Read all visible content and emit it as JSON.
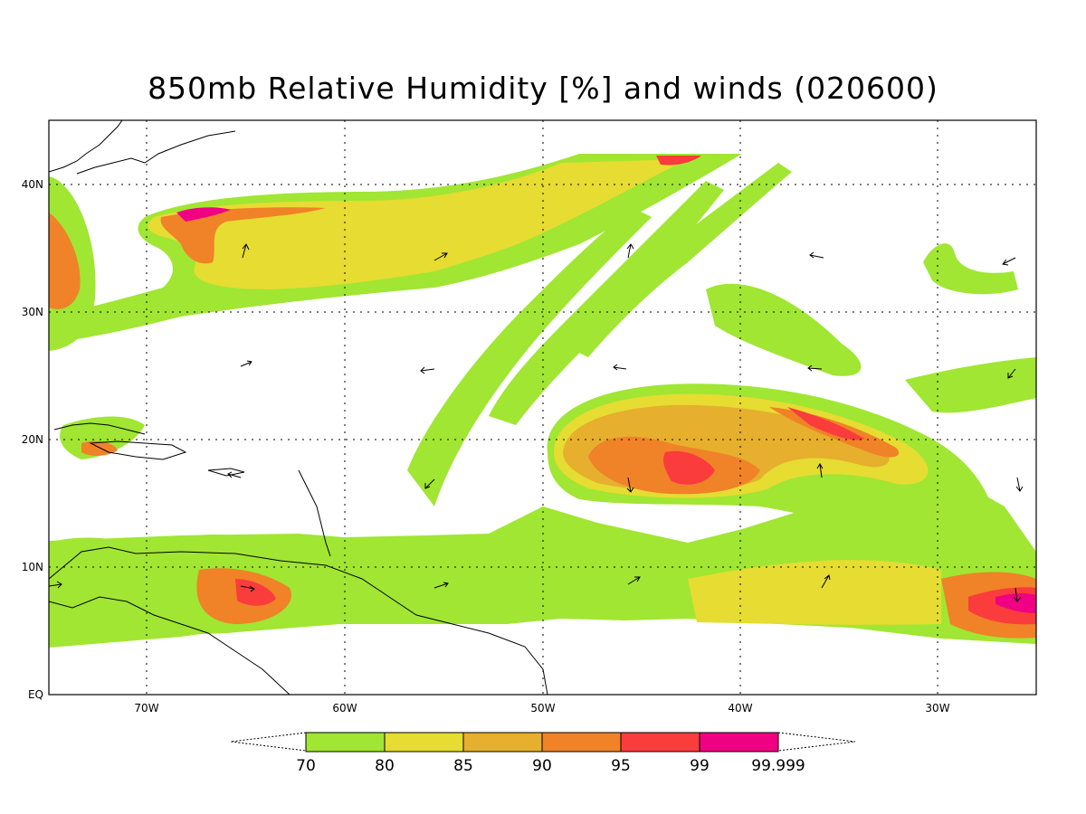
{
  "title": "850mb Relative Humidity [%] and winds (020600)",
  "lon_labels": [
    "70W",
    "60W",
    "50W",
    "40W",
    "30W"
  ],
  "lat_labels": [
    "40N",
    "30N",
    "20N",
    "10N",
    "EQ"
  ],
  "colorbar": {
    "levels": [
      "70",
      "80",
      "85",
      "90",
      "95",
      "99",
      "99.999"
    ],
    "colors": [
      "#a0e632",
      "#e6dc32",
      "#e6af2d",
      "#f08228",
      "#fa3c3c",
      "#f00082"
    ]
  },
  "map_colors": {
    "rh70": "#a0e632",
    "rh80": "#e6dc32",
    "rh85": "#e6af2d",
    "rh90": "#f08228",
    "rh95": "#fa3c3c",
    "rh99": "#f00082",
    "coast": "#000000"
  }
}
